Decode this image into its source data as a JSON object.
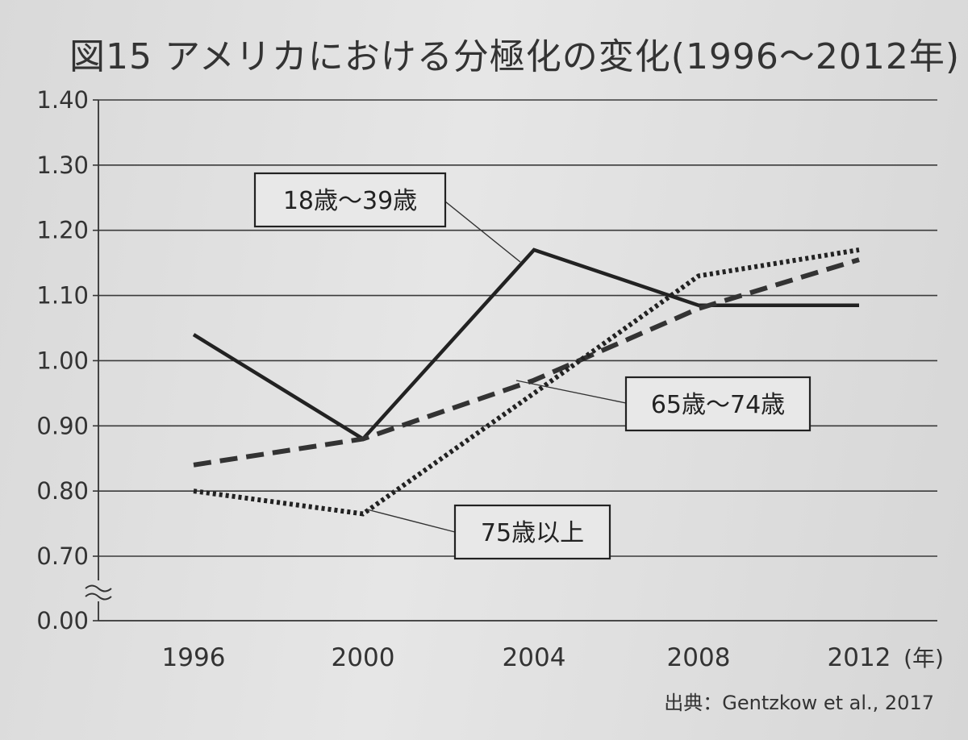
{
  "title": "図15 アメリカにおける分極化の変化(1996〜2012年)",
  "source": "出典：Gentzkow et al., 2017",
  "chart_data": {
    "type": "line",
    "title": "図15 アメリカにおける分極化の変化(1996〜2012年)",
    "xlabel": "",
    "x_unit": "(年)",
    "ylabel": "",
    "categories": [
      "1996",
      "2000",
      "2004",
      "2008",
      "2012"
    ],
    "yticks": [
      "0.00",
      "0.70",
      "0.80",
      "0.90",
      "1.00",
      "1.10",
      "1.20",
      "1.30",
      "1.40"
    ],
    "ylim": [
      0.0,
      1.4
    ],
    "axis_break": "between 0.00 and 0.70",
    "grid": true,
    "legend": "callout labels",
    "series": [
      {
        "name": "18歳〜39歳",
        "style": "solid",
        "color": "#222222",
        "values": [
          1.04,
          0.88,
          1.17,
          1.085,
          1.085
        ]
      },
      {
        "name": "65歳〜74歳",
        "style": "dashed",
        "color": "#333333",
        "values": [
          0.84,
          0.88,
          0.97,
          1.08,
          1.155
        ]
      },
      {
        "name": "75歳以上",
        "style": "dotted",
        "color": "#222222",
        "values": [
          0.8,
          0.765,
          0.95,
          1.13,
          1.17
        ]
      }
    ]
  }
}
